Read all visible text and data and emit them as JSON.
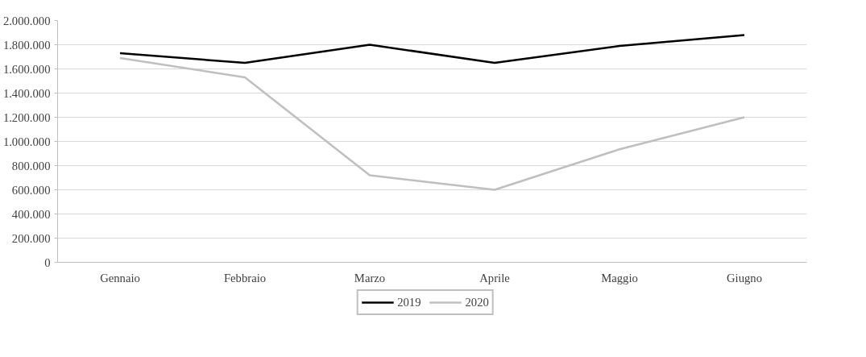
{
  "chart_data": {
    "type": "line",
    "categories": [
      "Gennaio",
      "Febbraio",
      "Marzo",
      "Aprile",
      "Maggio",
      "Giugno"
    ],
    "series": [
      {
        "name": "2019",
        "color": "#000000",
        "values": [
          1730000,
          1650000,
          1800000,
          1650000,
          1790000,
          1880000
        ]
      },
      {
        "name": "2020",
        "color": "#bfbfbf",
        "values": [
          1690000,
          1530000,
          720000,
          600000,
          935000,
          1200000
        ]
      }
    ],
    "ylim": [
      0,
      2000000
    ],
    "yticks": [
      {
        "value": 0,
        "label": "0"
      },
      {
        "value": 200000,
        "label": "200.000"
      },
      {
        "value": 400000,
        "label": "400.000"
      },
      {
        "value": 600000,
        "label": "600.000"
      },
      {
        "value": 800000,
        "label": "800.000"
      },
      {
        "value": 1000000,
        "label": "1.000.000"
      },
      {
        "value": 1200000,
        "label": "1.200.000"
      },
      {
        "value": 1400000,
        "label": "1.400.000"
      },
      {
        "value": 1600000,
        "label": "1.600.000"
      },
      {
        "value": 1800000,
        "label": "1.800.000"
      },
      {
        "value": 2000000,
        "label": "2.000.000"
      }
    ],
    "grid": "y",
    "legend": "bottom",
    "marker": "none",
    "line_style": "solid"
  }
}
